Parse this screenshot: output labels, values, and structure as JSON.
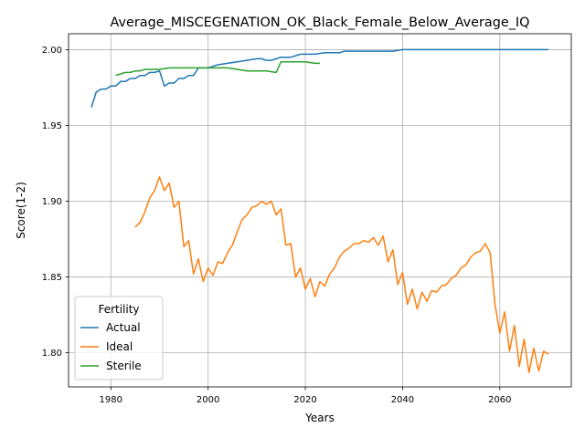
{
  "chart_data": {
    "type": "line",
    "title": "Average_MISCEGENATION_OK_Black_Female_Below_Average_IQ",
    "xlabel": "Years",
    "ylabel": "Score(1-2)",
    "xlim": [
      1971.3,
      2074.7
    ],
    "ylim": [
      1.7775,
      2.0105
    ],
    "xticks": [
      1980,
      2000,
      2020,
      2040,
      2060
    ],
    "yticks": [
      1.8,
      1.85,
      1.9,
      1.95,
      2.0
    ],
    "xtick_labels": [
      "1980",
      "2000",
      "2020",
      "2040",
      "2060"
    ],
    "ytick_labels": [
      "1.80",
      "1.85",
      "1.90",
      "1.95",
      "2.00"
    ],
    "grid": true,
    "legend": {
      "title": "Fertility",
      "position": "lower-left"
    },
    "series": [
      {
        "name": "Actual",
        "color": "#1f77b4",
        "x": [
          1976,
          1977,
          1978,
          1979,
          1980,
          1981,
          1982,
          1983,
          1984,
          1985,
          1986,
          1987,
          1988,
          1989,
          1990,
          1991,
          1992,
          1993,
          1994,
          1995,
          1996,
          1997,
          1998,
          1999,
          2000,
          2001,
          2002,
          2004,
          2006,
          2008,
          2010,
          2011,
          2012,
          2013,
          2014,
          2015,
          2016,
          2017,
          2018,
          2019,
          2020,
          2022,
          2024,
          2026,
          2027,
          2028,
          2030,
          2032,
          2033,
          2034,
          2036,
          2038,
          2040,
          2045,
          2050,
          2054,
          2060,
          2070
        ],
        "y": [
          1.962,
          1.972,
          1.974,
          1.974,
          1.976,
          1.976,
          1.979,
          1.979,
          1.981,
          1.981,
          1.983,
          1.983,
          1.985,
          1.985,
          1.986,
          1.976,
          1.978,
          1.978,
          1.981,
          1.981,
          1.983,
          1.983,
          1.988,
          1.988,
          1.988,
          1.989,
          1.99,
          1.991,
          1.992,
          1.993,
          1.994,
          1.994,
          1.993,
          1.993,
          1.994,
          1.995,
          1.995,
          1.995,
          1.996,
          1.997,
          1.997,
          1.997,
          1.998,
          1.998,
          1.998,
          1.999,
          1.999,
          1.999,
          1.999,
          1.999,
          1.999,
          1.999,
          2.0,
          2.0,
          2.0,
          2.0,
          2.0,
          2.0
        ]
      },
      {
        "name": "Ideal",
        "color": "#ff7f0e",
        "x": [
          1985,
          1986,
          1987,
          1988,
          1989,
          1990,
          1991,
          1992,
          1993,
          1994,
          1995,
          1996,
          1997,
          1998,
          1999,
          2000,
          2001,
          2002,
          2003,
          2004,
          2005,
          2006,
          2007,
          2008,
          2009,
          2010,
          2011,
          2012,
          2013,
          2014,
          2015,
          2016,
          2017,
          2018,
          2019,
          2020,
          2021,
          2022,
          2023,
          2024,
          2025,
          2026,
          2027,
          2028,
          2029,
          2030,
          2031,
          2032,
          2033,
          2034,
          2035,
          2036,
          2037,
          2038,
          2039,
          2040,
          2041,
          2042,
          2043,
          2044,
          2045,
          2046,
          2047,
          2048,
          2049,
          2050,
          2051,
          2052,
          2053,
          2054,
          2055,
          2056,
          2057,
          2058,
          2059,
          2060,
          2061,
          2062,
          2063,
          2064,
          2065,
          2066,
          2067,
          2068,
          2069,
          2070
        ],
        "y": [
          1.883,
          1.886,
          1.893,
          1.902,
          1.907,
          1.916,
          1.907,
          1.912,
          1.896,
          1.9,
          1.87,
          1.874,
          1.852,
          1.862,
          1.847,
          1.856,
          1.851,
          1.86,
          1.859,
          1.866,
          1.871,
          1.88,
          1.888,
          1.891,
          1.896,
          1.897,
          1.9,
          1.898,
          1.9,
          1.891,
          1.895,
          1.871,
          1.872,
          1.85,
          1.856,
          1.842,
          1.849,
          1.837,
          1.847,
          1.844,
          1.852,
          1.856,
          1.863,
          1.867,
          1.869,
          1.872,
          1.872,
          1.874,
          1.873,
          1.876,
          1.871,
          1.877,
          1.86,
          1.868,
          1.845,
          1.853,
          1.832,
          1.842,
          1.829,
          1.84,
          1.834,
          1.841,
          1.84,
          1.844,
          1.845,
          1.849,
          1.851,
          1.856,
          1.858,
          1.863,
          1.866,
          1.867,
          1.872,
          1.866,
          1.832,
          1.813,
          1.827,
          1.801,
          1.818,
          1.791,
          1.809,
          1.787,
          1.803,
          1.788,
          1.801,
          1.799
        ]
      },
      {
        "name": "Sterile",
        "color": "#2ca02c",
        "x": [
          1981,
          1982,
          1983,
          1984,
          1985,
          1986,
          1987,
          1988,
          1989,
          1990,
          1992,
          1994,
          1996,
          1998,
          2000,
          2002,
          2004,
          2006,
          2008,
          2010,
          2012,
          2014,
          2015,
          2016,
          2018,
          2020,
          2022,
          2023
        ],
        "y": [
          1.983,
          1.984,
          1.985,
          1.985,
          1.986,
          1.986,
          1.987,
          1.987,
          1.987,
          1.987,
          1.988,
          1.988,
          1.988,
          1.988,
          1.988,
          1.988,
          1.988,
          1.987,
          1.986,
          1.986,
          1.986,
          1.985,
          1.992,
          1.992,
          1.992,
          1.992,
          1.991,
          1.991
        ]
      }
    ]
  }
}
